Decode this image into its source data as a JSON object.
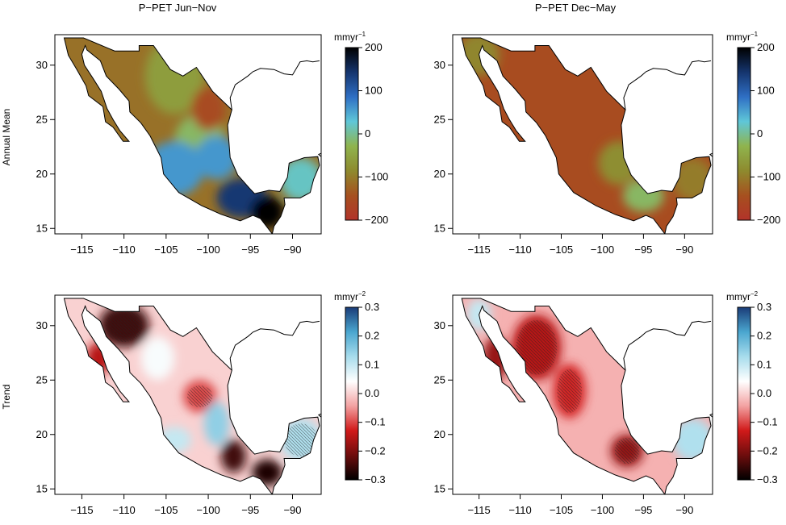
{
  "figure": {
    "column_titles": [
      "P−PET Jun−Nov",
      "P−PET Dec−May"
    ],
    "row_labels": [
      "Annual Mean",
      "Trend"
    ]
  },
  "x_axis": {
    "ticks": [
      -115,
      -110,
      -105,
      -100,
      -95,
      -90
    ],
    "tick_labels": [
      "−115",
      "−110",
      "−105",
      "−100",
      "−95",
      "−90"
    ],
    "range": [
      -118.2,
      -86.6
    ]
  },
  "y_axis": {
    "ticks": [
      15,
      20,
      25,
      30
    ],
    "tick_labels": [
      "15",
      "20",
      "25",
      "30"
    ],
    "range": [
      14.5,
      32.8
    ]
  },
  "colorbars": {
    "mean": {
      "unit_base": "mmyr",
      "unit_exp": "−1",
      "ticks": [
        200,
        100,
        0,
        -100,
        -200
      ],
      "tick_labels": [
        "200",
        "100",
        "0",
        "−100",
        "−200"
      ],
      "range": [
        -200,
        200
      ],
      "stops": [
        "#b2332a",
        "#a6501f",
        "#8e8a2e",
        "#8fb44e",
        "#5fc7d8",
        "#2f6fc4",
        "#15356e",
        "#000000"
      ]
    },
    "trend": {
      "unit_base": "mmyr",
      "unit_exp": "−2",
      "ticks": [
        0.3,
        0.2,
        0.1,
        0.0,
        -0.1,
        -0.2,
        -0.3
      ],
      "tick_labels": [
        "0.3",
        "0.2",
        "0.1",
        "0.0",
        "−0.1",
        "−0.2",
        "−0.3"
      ],
      "range": [
        -0.3,
        0.3
      ],
      "stops": [
        "#000000",
        "#6e0d0d",
        "#d11a1a",
        "#f3a3a3",
        "#ffffff",
        "#a7dcec",
        "#4aa6cf",
        "#1a3c78"
      ]
    }
  },
  "panels": [
    {
      "field": "mean",
      "period": "Jun−Nov",
      "base_value": -110,
      "blobs": [
        {
          "lon": -104,
          "lat": 29,
          "rx": 3.5,
          "ry": 3.5,
          "value": -60
        },
        {
          "lon": -101,
          "lat": 23,
          "rx": 3,
          "ry": 2.5,
          "value": -20
        },
        {
          "lon": -104,
          "lat": 20.5,
          "rx": 3.5,
          "ry": 2.5,
          "value": 60
        },
        {
          "lon": -99,
          "lat": 21.5,
          "rx": 2.5,
          "ry": 2,
          "value": 60
        },
        {
          "lon": -96,
          "lat": 17.8,
          "rx": 3,
          "ry": 1.8,
          "value": 140
        },
        {
          "lon": -93,
          "lat": 16.5,
          "rx": 2,
          "ry": 1.5,
          "value": 200
        },
        {
          "lon": -89,
          "lat": 19.5,
          "rx": 2.5,
          "ry": 2,
          "value": 20
        },
        {
          "lon": -100,
          "lat": 26,
          "rx": 2,
          "ry": 2,
          "value": -150
        }
      ],
      "hatch": []
    },
    {
      "field": "mean",
      "period": "Dec−May",
      "base_value": -150,
      "blobs": [
        {
          "lon": -115,
          "lat": 31,
          "rx": 2.5,
          "ry": 2,
          "value": -90
        },
        {
          "lon": -98,
          "lat": 21,
          "rx": 2.5,
          "ry": 2,
          "value": -80
        },
        {
          "lon": -95,
          "lat": 18,
          "rx": 2.5,
          "ry": 1.5,
          "value": -20
        },
        {
          "lon": -89,
          "lat": 19.5,
          "rx": 2.5,
          "ry": 2,
          "value": -100
        }
      ],
      "hatch": []
    },
    {
      "field": "trend",
      "period": "Jun−Nov",
      "base_value": 0,
      "blobs": [
        {
          "lon": -110,
          "lat": 30,
          "rx": 3,
          "ry": 2,
          "value": -0.25
        },
        {
          "lon": -113,
          "lat": 27,
          "rx": 1.5,
          "ry": 1.5,
          "value": -0.15
        },
        {
          "lon": -101,
          "lat": 23.5,
          "rx": 2,
          "ry": 1.5,
          "value": -0.1
        },
        {
          "lon": -99,
          "lat": 21,
          "rx": 1.5,
          "ry": 2,
          "value": 0.15
        },
        {
          "lon": -97,
          "lat": 18,
          "rx": 1.5,
          "ry": 1.5,
          "value": -0.25
        },
        {
          "lon": -93,
          "lat": 16.5,
          "rx": 1.8,
          "ry": 1.2,
          "value": -0.28
        },
        {
          "lon": -89,
          "lat": 19.5,
          "rx": 2.5,
          "ry": 2,
          "value": 0.12
        },
        {
          "lon": -104,
          "lat": 19.5,
          "rx": 2,
          "ry": 1.2,
          "value": 0.1
        },
        {
          "lon": -106,
          "lat": 27,
          "rx": 2,
          "ry": 2,
          "value": 0.05
        }
      ],
      "hatch": [
        {
          "lon": -110,
          "lat": 30,
          "rx": 2.2,
          "ry": 1.5
        },
        {
          "lon": -101,
          "lat": 23.5,
          "rx": 1.5,
          "ry": 1
        },
        {
          "lon": -89,
          "lat": 19.5,
          "rx": 2,
          "ry": 1.5
        }
      ]
    },
    {
      "field": "trend",
      "period": "Dec−May",
      "base_value": -0.03,
      "blobs": [
        {
          "lon": -108,
          "lat": 28,
          "rx": 3,
          "ry": 3,
          "value": -0.15
        },
        {
          "lon": -113,
          "lat": 27,
          "rx": 1.5,
          "ry": 2,
          "value": -0.18
        },
        {
          "lon": -104,
          "lat": 24,
          "rx": 2,
          "ry": 2.5,
          "value": -0.12
        },
        {
          "lon": -97,
          "lat": 18.5,
          "rx": 2,
          "ry": 1.5,
          "value": -0.18
        },
        {
          "lon": -89,
          "lat": 19.5,
          "rx": 2.5,
          "ry": 2,
          "value": 0.12
        },
        {
          "lon": -115,
          "lat": 31,
          "rx": 1.5,
          "ry": 1.5,
          "value": 0.1
        }
      ],
      "hatch": [
        {
          "lon": -108,
          "lat": 28,
          "rx": 2.5,
          "ry": 2.5
        },
        {
          "lon": -104,
          "lat": 24,
          "rx": 1.5,
          "ry": 2
        },
        {
          "lon": -97,
          "lat": 18.5,
          "rx": 1.5,
          "ry": 1.2
        }
      ]
    }
  ]
}
